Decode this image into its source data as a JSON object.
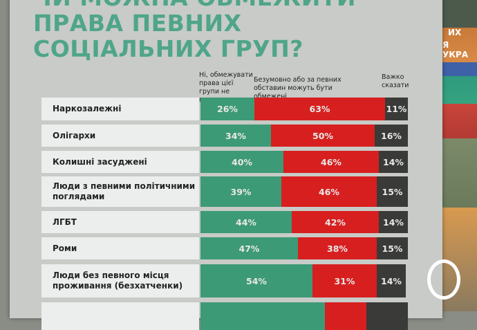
{
  "title": [
    "ЧИ МОЖНА ОБМЕЖИТИ",
    "ПРАВА ПЕВНИХ",
    "СОЦІАЛЬНИХ ГРУП?"
  ],
  "background_sign": [
    "ИХ",
    "Я УКРА"
  ],
  "colors": {
    "no": "#3d9a76",
    "yes": "#d71f1f",
    "hard": "#3a3a38",
    "title": "#4fa58a"
  },
  "chart_data": {
    "type": "bar",
    "stacked": true,
    "orientation": "horizontal",
    "title": "ЧИ МОЖНА ОБМЕЖИТИ ПРАВА ПЕВНИХ СОЦІАЛЬНИХ ГРУП?",
    "categories": [
      "Наркозалежні",
      "Олігархи",
      "Колишні засуджені",
      "Люди з певними політичними поглядами",
      "ЛГБТ",
      "Роми",
      "Люди без певного місця проживання (безхатченки)",
      ""
    ],
    "series": [
      {
        "name": "Ні, обмежувати права цієї групи не можна",
        "values": [
          26,
          34,
          40,
          39,
          44,
          47,
          54,
          null
        ]
      },
      {
        "name": "Безумовно або за певних обставин можуть бути обмежені",
        "values": [
          63,
          50,
          46,
          46,
          42,
          38,
          31,
          null
        ]
      },
      {
        "name": "Важко сказати",
        "values": [
          11,
          16,
          14,
          15,
          14,
          15,
          14,
          null
        ]
      }
    ],
    "value_format": "percent",
    "legend": "top"
  }
}
